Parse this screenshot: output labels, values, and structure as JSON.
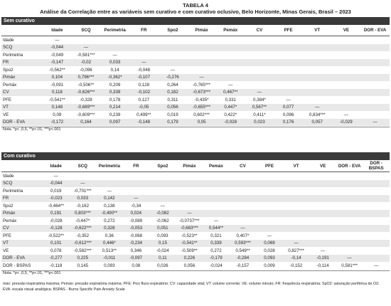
{
  "header": {
    "label": "TABELA 4",
    "title": "Análise da Correlação entre as variáveis sem curativo e com curativo oclusivo, Belo Horizonte, Minas Gerais, Brasil – 2023"
  },
  "sections": [
    {
      "title": "Sem curativo",
      "columns": [
        "Idade",
        "SCQ",
        "Perimetria",
        "FR",
        "Spo2",
        "Pimáx",
        "Pemáx",
        "CV",
        "PFE",
        "VT",
        "VE",
        "DOR - EVA"
      ],
      "rows": [
        {
          "label": "Idade",
          "cells": [
            "—"
          ]
        },
        {
          "label": "SCQ",
          "cells": [
            "-0,044",
            "—"
          ]
        },
        {
          "label": "Perimetria",
          "cells": [
            "-0,049",
            "-0,581***",
            "—"
          ]
        },
        {
          "label": "FR",
          "cells": [
            "-0,147",
            "-0,02",
            "0,033",
            "—"
          ]
        },
        {
          "label": "Spo2",
          "cells": [
            "-0,562**",
            "-0,096",
            "0,14",
            "-0,048",
            "—"
          ]
        },
        {
          "label": "Pimáx",
          "cells": [
            "0,104",
            "0,796***",
            "-0,362*",
            "-0,107",
            "-0,276",
            "—"
          ]
        },
        {
          "label": "Pemáx",
          "cells": [
            "-0,091",
            "-0,506**",
            "0,209",
            "0,128",
            "0,264",
            "-0,765***",
            "—"
          ]
        },
        {
          "label": "CV",
          "cells": [
            "0,118",
            "-0,626***",
            "0,339",
            "-0,102",
            "0,182",
            "-0,673***",
            "0,467**",
            "—"
          ]
        },
        {
          "label": "PFE",
          "cells": [
            "-0,541**",
            "-0,328",
            "0,178",
            "0,127",
            "0,311",
            "-0,435*",
            "0,331",
            "0,384*",
            "—"
          ]
        },
        {
          "label": "VT",
          "cells": [
            "0,148",
            "-0,689***",
            "0,214",
            "-0,05",
            "0,056",
            "-0,655***",
            "0,447*",
            "0,567**",
            "0,077",
            "—"
          ]
        },
        {
          "label": "VE",
          "cells": [
            "0,09",
            "-0,609***",
            "0,239",
            "0,499**",
            "0,019",
            "0,602***",
            "0,422*",
            "0,411*",
            "0,096",
            "0,834***",
            "—"
          ]
        },
        {
          "label": "DOR - EVA",
          "cells": [
            "-0,172",
            "0,164",
            "0,097",
            "-0,148",
            "0,179",
            "0,05",
            "-0,028",
            "0,023",
            "0,176",
            "0,057",
            "-0,029",
            "—"
          ]
        }
      ],
      "note": "Nota. *p< ,0,5, **p<.01, ***p<.001"
    },
    {
      "title": "Com curativo",
      "columns": [
        "Idade",
        "SCQ",
        "Perimetria",
        "FR",
        "Spo2",
        "Pimáx",
        "Pemáx",
        "CV",
        "PFE",
        "VT",
        "VE",
        "DOR - EVA",
        "DOR - BSPAS"
      ],
      "rows": [
        {
          "label": "Idade",
          "cells": [
            "—"
          ]
        },
        {
          "label": "SCQ",
          "cells": [
            "-0,044",
            "—"
          ]
        },
        {
          "label": "Perimetria",
          "cells": [
            "0,019",
            "-0,701***",
            "—"
          ]
        },
        {
          "label": "FR",
          "cells": [
            "-0,023",
            "0,033",
            "0,142",
            "—"
          ]
        },
        {
          "label": "Spo2",
          "cells": [
            "-0,464**",
            "-0,162",
            "0,138",
            "-0,34",
            "—"
          ]
        },
        {
          "label": "Pimáx",
          "cells": [
            "0,191",
            "0,803***",
            "-0,490**",
            "0,024",
            "-0,082",
            "—"
          ]
        },
        {
          "label": "Pemáx",
          "cells": [
            "-0,028",
            "-0,447*",
            "0,272",
            "-0,089",
            "-0,062",
            "-0,0737***",
            "—"
          ]
        },
        {
          "label": "CV",
          "cells": [
            "-0,128",
            "-0,622***",
            "0,328",
            "-0,053",
            "0,051",
            "-0,683***",
            "0,544**",
            "—"
          ]
        },
        {
          "label": "PFE",
          "cells": [
            "-0,522**",
            "-0,352",
            "0,36",
            "-0,068",
            "0,093",
            "-0,523**",
            "0,321",
            "0,407*",
            "—"
          ]
        },
        {
          "label": "VT",
          "cells": [
            "0,101",
            "-0,612***",
            "0,446*",
            "-0,234",
            "0,15",
            "-0,541**",
            "0,339",
            "0,593***",
            "0,069",
            "—"
          ]
        },
        {
          "label": "VE",
          "cells": [
            "0,078",
            "-0,582***",
            "0,513**",
            "0,346",
            "-0,024",
            "-0,509**",
            "0,272",
            "0,549**",
            "0,028",
            "0,827***",
            "—"
          ]
        },
        {
          "label": "DOR - EVA",
          "cells": [
            "-0,277",
            "0,225",
            "-0,011",
            "-0,097",
            "0,11",
            "0,226",
            "-0,179",
            "-0,284",
            "0,093",
            "-0,14",
            "-0,191",
            "—"
          ]
        },
        {
          "label": "DOR - BSPAS",
          "cells": [
            "-0,118",
            "0,145",
            "0,093",
            "0,08",
            "0,026",
            "0,056",
            "-0,024",
            "-0,157",
            "0,009",
            "-0,152",
            "-0,114",
            "0,581***",
            "—"
          ]
        }
      ],
      "note": "Nota. *p< ,0,5, **p<.01, ***p<.001"
    }
  ],
  "footnote": "máx: pressão inspiratória máxima; Pemáx: pressão expiratória máxima; PFE: Pico fluxo expiratório; CV: capacidade vital; VT: volume corrente; VE: volume minuto; FR: frequência respiratória; SpO2: saturação periférica de O2; EVA: escala visual analógica; BSPAS - Burns Specific Pain Anxiety Scale"
}
